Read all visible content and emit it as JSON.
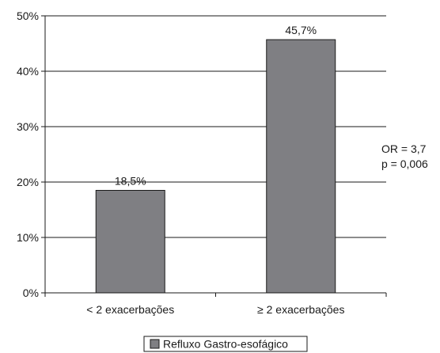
{
  "chart_data": {
    "type": "bar",
    "categories": [
      "< 2 exacerbações",
      "≥ 2 exacerbações"
    ],
    "series": [
      {
        "name": "Refluxo Gastro-esofágico",
        "values": [
          18.5,
          45.7
        ],
        "color": "#7f7f83"
      }
    ],
    "data_labels": [
      "18,5%",
      "45,7%"
    ],
    "y_ticks": [
      {
        "value": 0,
        "label": "0%"
      },
      {
        "value": 10,
        "label": "10%"
      },
      {
        "value": 20,
        "label": "20%"
      },
      {
        "value": 30,
        "label": "30%"
      },
      {
        "value": 40,
        "label": "40%"
      },
      {
        "value": 50,
        "label": "50%"
      }
    ],
    "ylim": [
      0,
      50
    ],
    "grid": true,
    "legend_position": "bottom-center",
    "annotation": [
      "OR = 3,7",
      "p = 0,006"
    ]
  }
}
